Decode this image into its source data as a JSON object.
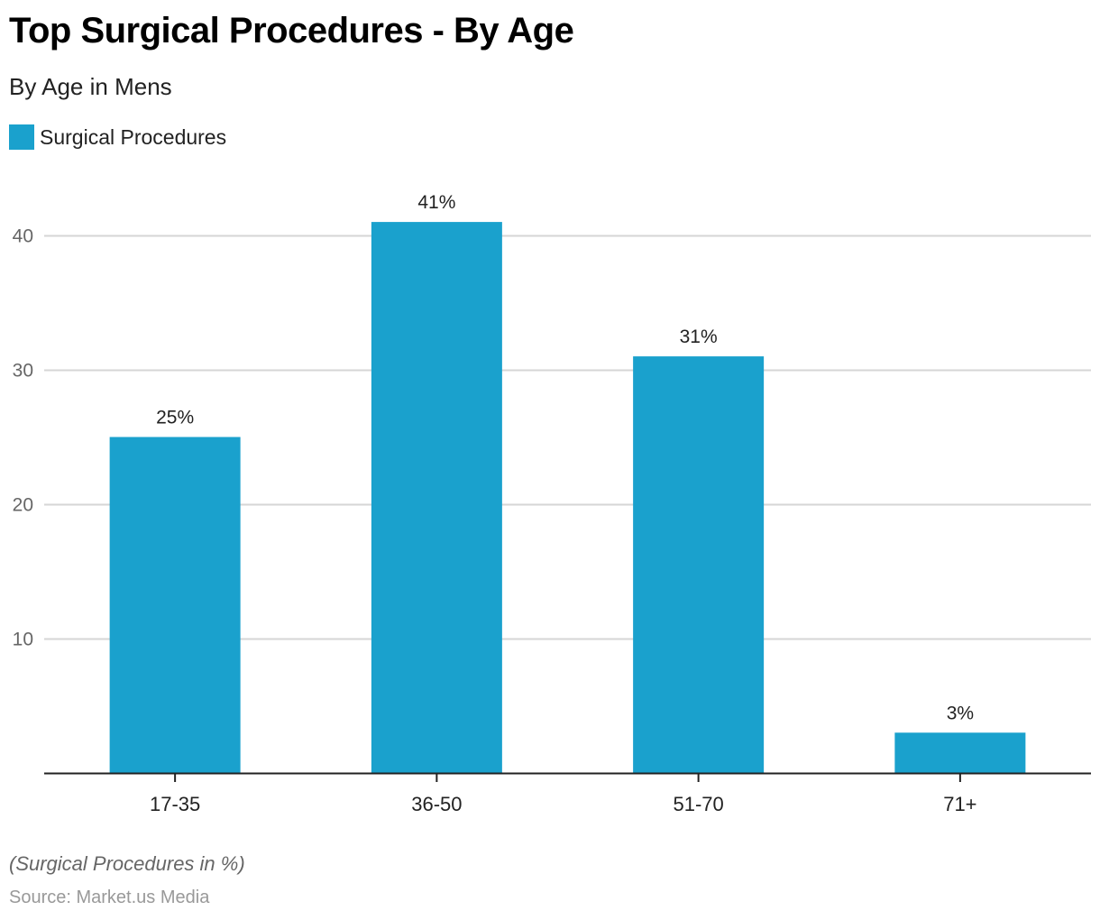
{
  "header": {
    "title": "Top Surgical Procedures - By Age",
    "subtitle": "By Age in Mens"
  },
  "legend": {
    "label": "Surgical Procedures",
    "color": "#1aa1cd"
  },
  "footer": {
    "note": "(Surgical Procedures in %)",
    "source": "Source: Market.us Media"
  },
  "chart_data": {
    "type": "bar",
    "title": "Top Surgical Procedures - By Age",
    "subtitle": "By Age in Mens",
    "xlabel": "",
    "ylabel": "",
    "categories": [
      "17-35",
      "36-50",
      "51-70",
      "71+"
    ],
    "series": [
      {
        "name": "Surgical Procedures",
        "values": [
          25,
          41,
          31,
          3
        ],
        "labels": [
          "25%",
          "41%",
          "31%",
          "3%"
        ],
        "color": "#1aa1cd"
      }
    ],
    "ylim": [
      0,
      45
    ],
    "yticks": [
      10,
      20,
      30,
      40
    ],
    "grid": true,
    "legend_position": "top-left"
  }
}
